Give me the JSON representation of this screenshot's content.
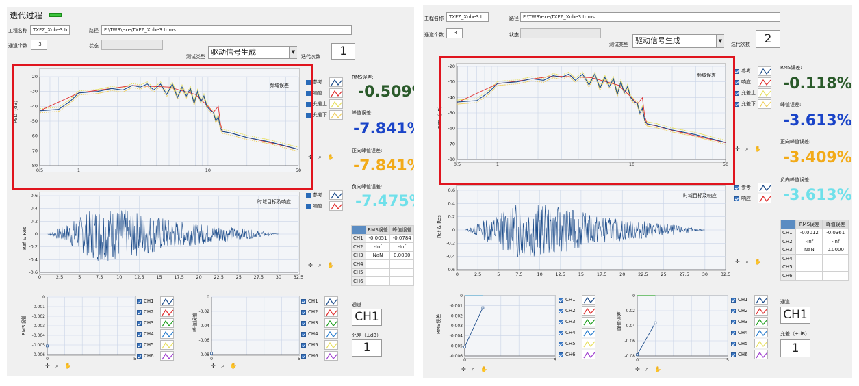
{
  "left": {
    "title": "迭代过程",
    "project_label": "工程名称",
    "project_value": "TXFZ_Xobe3.tc",
    "path_label": "路径",
    "path_value": "F:\\TWR\\exe\\TXFZ_Xobe3.tdms",
    "channel_count_label": "通道个数",
    "channel_count": "3",
    "status_label": "状态",
    "test_type_label": "测试类型",
    "test_type_value": "驱动信号生成",
    "iter_label": "迭代次数",
    "iter_value": "1",
    "freq_plot_title": "频域误差",
    "freq_ylabel": "PSD（dB）",
    "time_plot_title": "时域目标及响应",
    "time_ylabel": "Ref & Res",
    "rms_label": "RMS误差:",
    "rms_value": "-0.509%",
    "peak_label": "峰值误差:",
    "peak_value": "-7.841%",
    "pos_peak_label": "正向峰值误差:",
    "pos_peak_value": "-7.841%",
    "neg_peak_label": "负向峰值误差:",
    "neg_peak_value": "-7.475%",
    "table_headers": [
      "RMS误差",
      "峰值误差"
    ],
    "table_rows": [
      [
        "CH1",
        "-0.0051",
        "-0.0784"
      ],
      [
        "CH2",
        "-Inf",
        "-Inf"
      ],
      [
        "CH3",
        "NaN",
        "0.0000"
      ],
      [
        "CH4",
        "",
        ""
      ],
      [
        "CH5",
        "",
        ""
      ],
      [
        "CH6",
        "",
        ""
      ]
    ],
    "channel_label": "通道",
    "channel_value": "CH1",
    "tolerance_label": "允差（±dB）",
    "tolerance_value": "1",
    "rms_small_ylabel": "RMS误差",
    "peak_small_ylabel": "峰值误差"
  },
  "right": {
    "project_label": "工程名称",
    "project_value": "TXFZ_Xobe3.tc",
    "path_label": "路径",
    "path_value": "F:\\TWR\\exe\\TXFZ_Xobe3.tdms",
    "channel_count_label": "通道个数",
    "channel_count": "3",
    "status_label": "状态",
    "test_type_label": "测试类型",
    "test_type_value": "驱动信号生成",
    "iter_label": "迭代次数",
    "iter_value": "2",
    "freq_plot_title": "频域误差",
    "freq_ylabel": "PSD（dB）",
    "time_plot_title": "时域目标及响应",
    "time_ylabel": "Ref & Res",
    "rms_label": "RMS误差:",
    "rms_value": "-0.118%",
    "peak_label": "峰值误差:",
    "peak_value": "-3.613%",
    "pos_peak_label": "正向峰值误差:",
    "pos_peak_value": "-3.409%",
    "neg_peak_label": "负向峰值误差:",
    "neg_peak_value": "-3.613%",
    "table_headers": [
      "RMS误差",
      "峰值误差"
    ],
    "table_rows": [
      [
        "CH1",
        "-0.0012",
        "-0.0361"
      ],
      [
        "CH2",
        "-Inf",
        "-Inf"
      ],
      [
        "CH3",
        "NaN",
        "0.0000"
      ],
      [
        "CH4",
        "",
        ""
      ],
      [
        "CH5",
        "",
        ""
      ],
      [
        "CH6",
        "",
        ""
      ]
    ],
    "channel_label": "通道",
    "channel_value": "CH1",
    "tolerance_label": "允差（±dB）",
    "tolerance_value": "1",
    "rms_small_ylabel": "RMS误差",
    "peak_small_ylabel": "峰值误差"
  },
  "legend_freq": [
    "参考",
    "响应",
    "允差上",
    "允差下"
  ],
  "legend_time": [
    "参考",
    "响应"
  ],
  "legend_channels": [
    "CH1",
    "CH2",
    "CH3",
    "CH4",
    "CH5",
    "CH6"
  ],
  "colors": {
    "reference": "#1f4e8c",
    "response": "#e03030",
    "upper": "#e8e060",
    "lower": "#f0d060",
    "rms": "#2a5a2a",
    "peak": "#1a44c8",
    "pos_peak": "#f2aa18",
    "neg_peak": "#6fe0ea",
    "highlight": "#e0141e",
    "channels": [
      "#1f4e8c",
      "#e03030",
      "#20a020",
      "#2a7fd0",
      "#e8e060",
      "#a040d0"
    ]
  },
  "icons": [
    "pan-icon",
    "zoom-icon",
    "hand-icon",
    "dropdown-arrow-icon"
  ],
  "chart_data": [
    {
      "type": "line",
      "title": "频域误差",
      "ylabel": "PSD（dB）",
      "xscale": "log",
      "xlim": [
        0.5,
        50
      ],
      "ylim": [
        -80,
        -20
      ],
      "xticks": [
        "0.5",
        "1",
        "10",
        "50"
      ],
      "yticks": [
        "-20",
        "-30",
        "-40",
        "-50",
        "-60",
        "-70",
        "-80"
      ],
      "series": [
        {
          "name": "参考",
          "x": [
            0.5,
            0.7,
            0.85,
            1,
            1.4,
            1.8,
            2.2,
            2.6,
            3,
            3.4,
            3.8,
            4.3,
            4.8,
            5.3,
            5.8,
            6.3,
            6.8,
            7.3,
            7.8,
            8.3,
            8.8,
            9.3,
            9.8,
            10.5,
            11,
            11.5,
            12,
            12.5,
            13,
            15,
            20,
            30,
            50
          ],
          "values": [
            -43,
            -42,
            -37,
            -31,
            -30,
            -28,
            -29,
            -26,
            -27,
            -25,
            -29,
            -25,
            -32,
            -25,
            -34,
            -27,
            -33,
            -28,
            -38,
            -30,
            -37,
            -33,
            -40,
            -43,
            -44,
            -50,
            -47,
            -55,
            -57,
            -58,
            -61,
            -64,
            -69
          ]
        },
        {
          "name": "响应",
          "x": [
            0.5,
            1,
            2.6,
            5,
            8,
            10,
            11,
            12,
            12.5,
            13,
            15,
            20,
            50
          ],
          "values": [
            -43,
            -31,
            -26,
            -27,
            -32,
            -40,
            -44,
            -40,
            -52,
            -57,
            -58,
            -61,
            -69
          ]
        }
      ]
    },
    {
      "type": "line",
      "title": "时域目标及响应",
      "ylabel": "Ref & Res",
      "xlim": [
        0,
        32.5
      ],
      "ylim": [
        -0.6,
        0.6
      ],
      "xticks": [
        "0",
        "2.5",
        "5",
        "7.5",
        "10",
        "12.5",
        "15",
        "17.5",
        "20",
        "22.5",
        "25",
        "27.5",
        "30",
        "32.5"
      ],
      "yticks": [
        "0.6",
        "0.4",
        "0.2",
        "0",
        "-0.2",
        "-0.4",
        "-0.6"
      ],
      "series": [
        {
          "name": "参考",
          "x": [
            1,
            4,
            7.5,
            12.5,
            17.5,
            25,
            30
          ],
          "values": [
            0,
            0.2,
            0.45,
            0.35,
            0.2,
            0.1,
            0
          ]
        }
      ]
    },
    {
      "type": "line",
      "title": "",
      "ylabel": "RMS误差",
      "xlim": [
        0,
        5
      ],
      "ylim": [
        -0.006,
        0
      ],
      "yticks": [
        "0",
        "-0.001",
        "-0.002",
        "-0.003",
        "-0.004",
        "-0.005",
        "-0.006"
      ],
      "series": [
        {
          "name": "CH1",
          "x": [
            0,
            1
          ],
          "values": [
            -0.0051,
            -0.0012
          ]
        }
      ]
    },
    {
      "type": "line",
      "title": "",
      "ylabel": "峰值误差",
      "xlim": [
        0,
        5
      ],
      "ylim": [
        -0.08,
        0
      ],
      "yticks": [
        "0",
        "-0.02",
        "-0.04",
        "-0.06",
        "-0.08"
      ],
      "series": [
        {
          "name": "CH1",
          "x": [
            0,
            1
          ],
          "values": [
            -0.0784,
            -0.0361
          ]
        }
      ]
    }
  ]
}
